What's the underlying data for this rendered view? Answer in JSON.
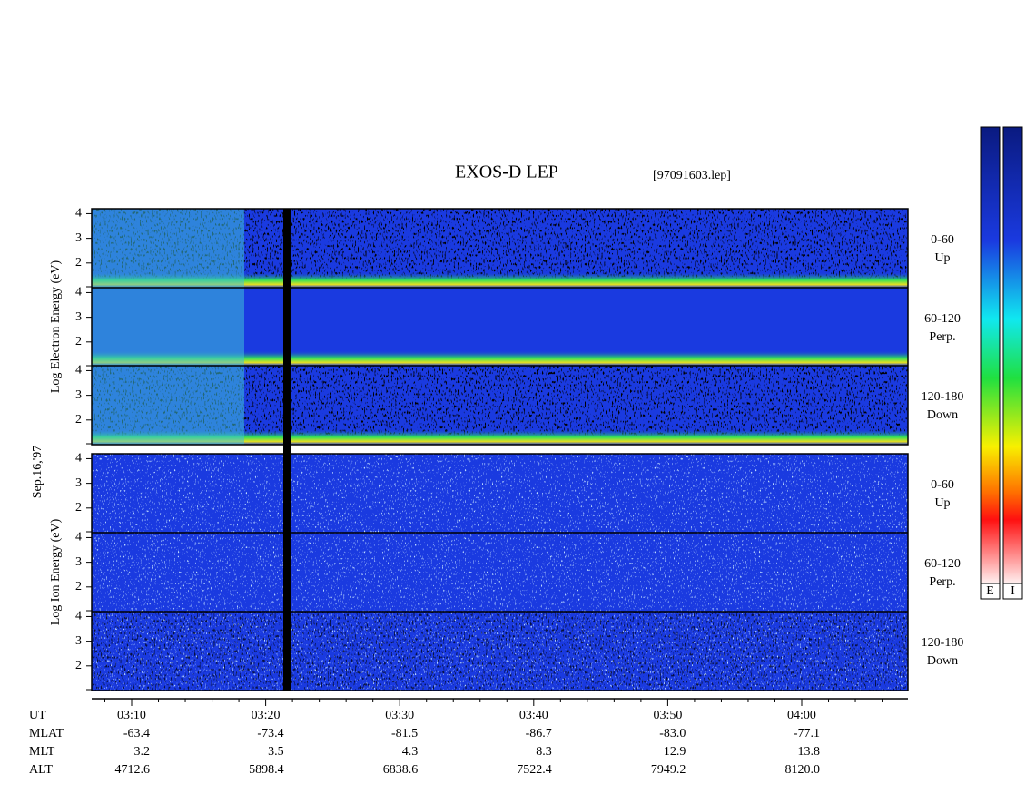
{
  "title": "EXOS-D LEP",
  "file": "[97091603.lep]",
  "date": "Sep.16,'97",
  "groups": [
    {
      "label": "Log Electron Energy (eV)",
      "panels": [
        {
          "angle": "0-60",
          "direction": "Up"
        },
        {
          "angle": "60-120",
          "direction": "Perp."
        },
        {
          "angle": "120-180",
          "direction": "Down"
        }
      ]
    },
    {
      "label": "Log Ion Energy (eV)",
      "panels": [
        {
          "angle": "0-60",
          "direction": "Up"
        },
        {
          "angle": "60-120",
          "direction": "Perp."
        },
        {
          "angle": "120-180",
          "direction": "Down"
        }
      ]
    }
  ],
  "energy_axis": {
    "ylim": [
      1,
      4.2
    ],
    "yticks": [
      2,
      3,
      4
    ]
  },
  "time_axis": {
    "ticks": [
      "03:10",
      "03:20",
      "03:30",
      "03:40",
      "03:50",
      "04:00"
    ]
  },
  "footer": [
    {
      "label": "UT"
    },
    {
      "label": "MLAT",
      "values": [
        "-63.4",
        "-73.4",
        "-81.5",
        "-86.7",
        "-83.0",
        "-77.1"
      ]
    },
    {
      "label": "MLT",
      "values": [
        "3.2",
        "3.5",
        "4.3",
        "8.3",
        "12.9",
        "13.8"
      ]
    },
    {
      "label": "ALT",
      "values": [
        "4712.6",
        "5898.4",
        "6838.6",
        "7522.4",
        "7949.2",
        "8120.0"
      ]
    }
  ],
  "colorbar": [
    "E",
    "I"
  ]
}
